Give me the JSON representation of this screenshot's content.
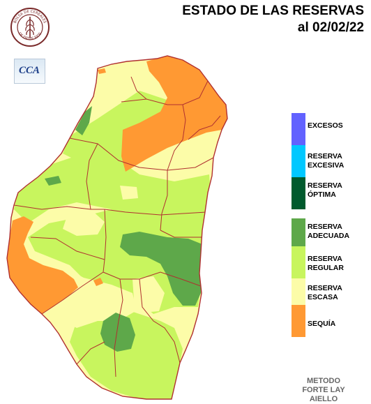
{
  "title": {
    "line1": "ESTADO DE LAS RESERVAS",
    "line2": "al 02/02/22"
  },
  "logos": {
    "bolsa_text": "BOLSA DE CEREALES DE ENTRE RIOS",
    "cca_text": "CCA"
  },
  "legend": {
    "items": [
      {
        "label": "EXCESOS",
        "color": "#6262ff"
      },
      {
        "label": "RESERVA\nEXCESIVA",
        "color": "#00c8ff"
      },
      {
        "label": "RESERVA\nÓPTIMA",
        "color": "#005a2d"
      },
      {
        "label": "RESERVA\nADECUADA",
        "color": "#5ea84a"
      },
      {
        "label": "RESERVA\nREGULAR",
        "color": "#c8f55e"
      },
      {
        "label": "RESERVA\nESCASA",
        "color": "#fcfca8"
      },
      {
        "label": "SEQUÍA",
        "color": "#ff9933"
      }
    ]
  },
  "method": "METODO\nFORTE LAY\nAIELLO",
  "colors": {
    "border": "#b03030",
    "escasa": "#fcfca8",
    "regular": "#c8f55e",
    "adecuada": "#5ea84a",
    "sequia": "#ff9933"
  }
}
